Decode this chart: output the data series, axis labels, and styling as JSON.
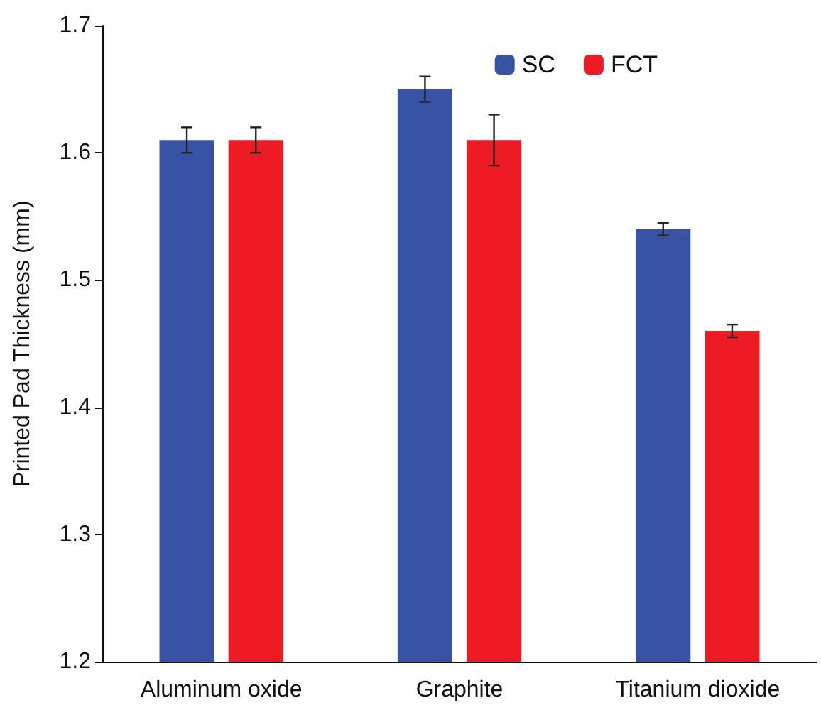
{
  "chart_data": {
    "type": "bar",
    "ylabel": "Printed Pad Thickness (mm)",
    "categories": [
      "Aluminum oxide",
      "Graphite",
      "Titanium dioxide"
    ],
    "series": [
      {
        "name": "SC",
        "color": "#3953a4",
        "values": [
          1.61,
          1.65,
          1.54
        ],
        "errors": [
          0.01,
          0.01,
          0.005
        ]
      },
      {
        "name": "FCT",
        "color": "#ed1c24",
        "values": [
          1.61,
          1.61,
          1.46
        ],
        "errors": [
          0.01,
          0.02,
          0.005
        ]
      }
    ],
    "ylim": [
      1.2,
      1.7
    ],
    "yticks": [
      1.2,
      1.3,
      1.4,
      1.5,
      1.6,
      1.7
    ],
    "grid": false,
    "legend": "top right"
  }
}
